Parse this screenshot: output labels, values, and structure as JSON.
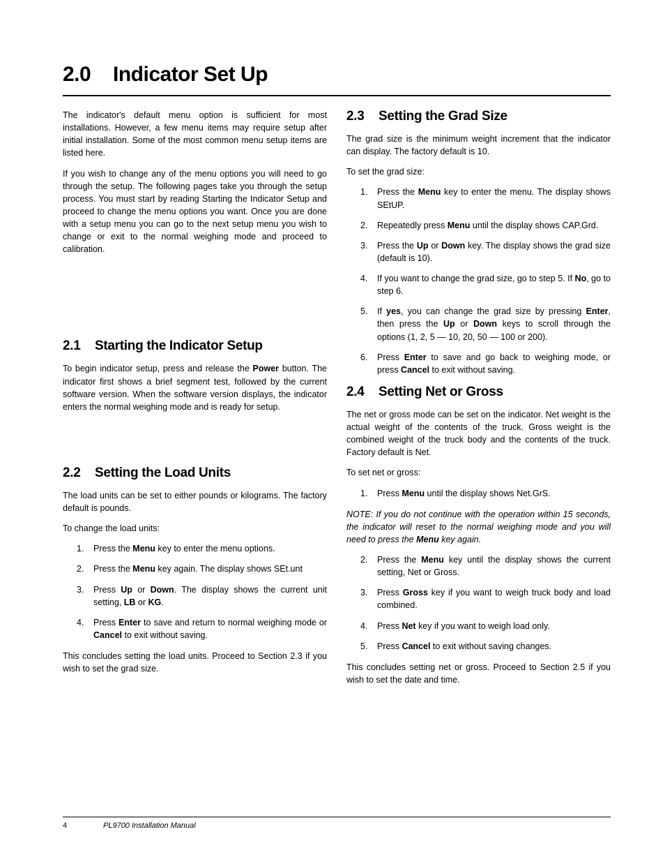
{
  "main_title": {
    "number": "2.0",
    "text": "Indicator Set Up"
  },
  "left": {
    "intro": [
      "The indicator's default menu option is sufficient for most installations. However, a few menu items may require setup after initial installation. Some of the most common menu setup items are listed here."
    ],
    "intro2": [
      "If you wish to change any of the menu options you will need to go through the setup. The following pages take you through the setup process. You must start by reading Starting the Indicator Setup and proceed to change the menu options you want. Once you are done with a setup menu you can go to the next setup menu you wish to change or exit to the normal weighing mode and proceed to calibration."
    ],
    "s21": {
      "number": "2.1",
      "title": "Starting the Indicator Setup"
    },
    "s21_p1": "To begin indicator setup, press and release the Power button. The indicator first shows a brief segment test, followed by the current software version. When the software version displays, the indicator enters the normal weighing mode and is ready for setup.",
    "s22": {
      "number": "2.2",
      "title": "Setting the Load Units"
    },
    "s22_p1": "The load units can be set to either pounds or kilograms. The factory default is pounds.",
    "s22_p2": "To change the load units:",
    "s22_steps": [
      "Press the Menu key to enter the menu options.",
      "Press the Menu key again. The display shows SEt.unt",
      "Press Up or Down. The display shows the current unit setting, LB or KG.",
      "Press Enter to save and return to normal weighing mode or Cancel to exit without saving."
    ],
    "s22_p3": "This concludes setting the load units. Proceed to Section 2.3 if you wish to set the grad size."
  },
  "right": {
    "s23": {
      "number": "2.3",
      "title": "Setting the Grad Size"
    },
    "s23_p1": "The grad size is the minimum weight increment that the indicator can display. The factory default is 10.",
    "s23_p2": "To set the grad size:",
    "s23_steps": [
      "Press the Menu key to enter the menu. The display shows SEtUP.",
      "Repeatedly press Menu until the display shows CAP.Grd.",
      "Press the Up or Down key. The display shows the grad size (default is 10).",
      "If you want to change the grad size, go to step 5. If No, go to step 6.",
      "If yes, you can change the grad size by pressing Enter, then press the Up or Down keys to scroll through the options (1, 2, 5 — 10, 20, 50 — 100 or 200).",
      "Press Enter to save and go back to weighing mode, or press Cancel to exit without saving."
    ],
    "s24": {
      "number": "2.4",
      "title": "Setting Net or Gross"
    },
    "s24_p1": "The net or gross mode can be set on the indicator. Net weight is the actual weight of the contents of the truck. Gross weight is the combined weight of the truck body and the contents of the truck. Factory default is Net.",
    "s24_p2": "To set net or gross:",
    "s24_steps_a": [
      "Press Menu until the display shows Net.GrS."
    ],
    "s24_note": "NOTE: If you do not continue with the operation within 15 seconds, the indicator will reset to the normal weighing mode and you will need to press the Menu key again.",
    "s24_steps_b": [
      "Press the Menu key until the display shows the current setting, Net or Gross.",
      "Press Gross key if you want to weigh truck body and load combined.",
      "Press Net key if you want to weigh load only.",
      "Press Cancel to exit without saving changes."
    ],
    "s24_p3": "This concludes setting net or gross. Proceed to Section 2.5 if you wish to set the date and time."
  },
  "footer": {
    "page": "4",
    "doc": "PL9700 Installation Manual"
  }
}
